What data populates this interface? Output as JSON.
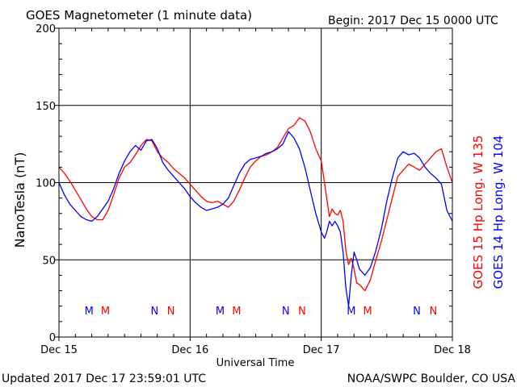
{
  "chart_data": {
    "type": "line",
    "title": "GOES Magnetometer (1 minute data)",
    "begin_label": "Begin:  2017 Dec 15 0000 UTC",
    "xlabel": "Universal Time",
    "ylabel": "NanoTesla (nT)",
    "ylim": [
      0,
      200
    ],
    "yticks": [
      0,
      50,
      100,
      150,
      200
    ],
    "xlim": [
      0,
      72
    ],
    "xticks": [
      {
        "hour": 0,
        "label": "Dec 15"
      },
      {
        "hour": 24,
        "label": "Dec 16"
      },
      {
        "hour": 48,
        "label": "Dec 17"
      },
      {
        "hour": 72,
        "label": "Dec 18"
      }
    ],
    "grid": true,
    "series": [
      {
        "name": "GOES 15 Hp  Long. W 135",
        "color": "#ff0000",
        "points": [
          [
            0,
            110
          ],
          [
            1,
            106
          ],
          [
            2,
            101
          ],
          [
            3,
            95
          ],
          [
            4,
            89
          ],
          [
            5,
            83
          ],
          [
            6,
            78
          ],
          [
            7,
            76
          ],
          [
            8,
            76
          ],
          [
            9,
            82
          ],
          [
            10,
            92
          ],
          [
            11,
            103
          ],
          [
            12,
            110
          ],
          [
            13,
            113
          ],
          [
            14,
            118
          ],
          [
            15,
            124
          ],
          [
            16,
            128
          ],
          [
            17,
            127
          ],
          [
            18,
            120
          ],
          [
            19,
            116
          ],
          [
            20,
            113
          ],
          [
            21,
            109
          ],
          [
            22,
            106
          ],
          [
            23,
            103
          ],
          [
            24,
            99
          ],
          [
            25,
            95
          ],
          [
            26,
            91
          ],
          [
            27,
            88
          ],
          [
            28,
            87
          ],
          [
            29,
            88
          ],
          [
            30,
            86
          ],
          [
            31,
            84
          ],
          [
            32,
            88
          ],
          [
            33,
            95
          ],
          [
            34,
            103
          ],
          [
            35,
            110
          ],
          [
            36,
            114
          ],
          [
            37,
            117
          ],
          [
            38,
            118
          ],
          [
            39,
            120
          ],
          [
            40,
            123
          ],
          [
            41,
            129
          ],
          [
            42,
            135
          ],
          [
            43,
            137
          ],
          [
            44,
            142
          ],
          [
            45,
            140
          ],
          [
            46,
            133
          ],
          [
            47,
            122
          ],
          [
            48,
            114
          ],
          [
            48.6,
            100
          ],
          [
            49,
            90
          ],
          [
            49.5,
            78
          ],
          [
            50,
            83
          ],
          [
            50.5,
            80
          ],
          [
            51,
            79
          ],
          [
            51.5,
            82
          ],
          [
            52,
            75
          ],
          [
            52.5,
            56
          ],
          [
            53,
            47
          ],
          [
            53.5,
            51
          ],
          [
            54,
            44
          ],
          [
            54.5,
            35
          ],
          [
            55,
            34
          ],
          [
            56,
            30
          ],
          [
            57,
            37
          ],
          [
            58,
            50
          ],
          [
            59,
            62
          ],
          [
            60,
            76
          ],
          [
            61,
            90
          ],
          [
            62,
            104
          ],
          [
            63,
            108
          ],
          [
            64,
            112
          ],
          [
            65,
            110
          ],
          [
            66,
            108
          ],
          [
            67,
            112
          ],
          [
            68,
            116
          ],
          [
            69,
            120
          ],
          [
            70,
            122
          ],
          [
            71,
            110
          ],
          [
            72,
            100
          ]
        ]
      },
      {
        "name": "GOES 14 Hp  Long. W 104",
        "color": "#0000ff",
        "points": [
          [
            0,
            100
          ],
          [
            1,
            92
          ],
          [
            2,
            86
          ],
          [
            3,
            82
          ],
          [
            4,
            78
          ],
          [
            5,
            76
          ],
          [
            6,
            75
          ],
          [
            7,
            78
          ],
          [
            8,
            83
          ],
          [
            9,
            88
          ],
          [
            10,
            96
          ],
          [
            11,
            106
          ],
          [
            12,
            114
          ],
          [
            13,
            120
          ],
          [
            14,
            124
          ],
          [
            15,
            121
          ],
          [
            16,
            127
          ],
          [
            17,
            128
          ],
          [
            18,
            122
          ],
          [
            19,
            113
          ],
          [
            20,
            108
          ],
          [
            21,
            104
          ],
          [
            22,
            100
          ],
          [
            23,
            96
          ],
          [
            24,
            91
          ],
          [
            25,
            87
          ],
          [
            26,
            84
          ],
          [
            27,
            82
          ],
          [
            28,
            83
          ],
          [
            29,
            84
          ],
          [
            30,
            86
          ],
          [
            31,
            90
          ],
          [
            32,
            98
          ],
          [
            33,
            106
          ],
          [
            34,
            112
          ],
          [
            35,
            115
          ],
          [
            36,
            116
          ],
          [
            37,
            117
          ],
          [
            38,
            119
          ],
          [
            39,
            120
          ],
          [
            40,
            122
          ],
          [
            41,
            125
          ],
          [
            42,
            133
          ],
          [
            43,
            129
          ],
          [
            44,
            122
          ],
          [
            45,
            110
          ],
          [
            46,
            95
          ],
          [
            47,
            80
          ],
          [
            48,
            68
          ],
          [
            48.6,
            64
          ],
          [
            49,
            68
          ],
          [
            49.5,
            75
          ],
          [
            50,
            72
          ],
          [
            50.5,
            75
          ],
          [
            51,
            72
          ],
          [
            51.5,
            68
          ],
          [
            52,
            55
          ],
          [
            52.5,
            32
          ],
          [
            53,
            20
          ],
          [
            53.5,
            40
          ],
          [
            54,
            55
          ],
          [
            54.5,
            50
          ],
          [
            55,
            44
          ],
          [
            56,
            40
          ],
          [
            57,
            45
          ],
          [
            58,
            56
          ],
          [
            59,
            70
          ],
          [
            60,
            88
          ],
          [
            61,
            103
          ],
          [
            62,
            116
          ],
          [
            63,
            120
          ],
          [
            64,
            118
          ],
          [
            65,
            119
          ],
          [
            66,
            116
          ],
          [
            67,
            110
          ],
          [
            68,
            106
          ],
          [
            69,
            103
          ],
          [
            70,
            99
          ],
          [
            71,
            82
          ],
          [
            72,
            75
          ]
        ]
      }
    ],
    "markers": [
      {
        "hour": 5.5,
        "label": "M",
        "color": "#0000ff"
      },
      {
        "hour": 8.5,
        "label": "M",
        "color": "#ff0000"
      },
      {
        "hour": 17.5,
        "label": "N",
        "color": "#0000ff"
      },
      {
        "hour": 20.5,
        "label": "N",
        "color": "#ff0000"
      },
      {
        "hour": 29.5,
        "label": "M",
        "color": "#0000ff"
      },
      {
        "hour": 32.5,
        "label": "M",
        "color": "#ff0000"
      },
      {
        "hour": 41.5,
        "label": "N",
        "color": "#0000ff"
      },
      {
        "hour": 44.5,
        "label": "N",
        "color": "#ff0000"
      },
      {
        "hour": 53.5,
        "label": "M",
        "color": "#0000ff"
      },
      {
        "hour": 56.5,
        "label": "M",
        "color": "#ff0000"
      },
      {
        "hour": 65.5,
        "label": "N",
        "color": "#0000ff"
      },
      {
        "hour": 68.5,
        "label": "N",
        "color": "#ff0000"
      }
    ]
  },
  "footer": {
    "updated": "Updated 2017 Dec 17 23:59:01 UTC",
    "credit": "NOAA/SWPC Boulder, CO USA"
  }
}
